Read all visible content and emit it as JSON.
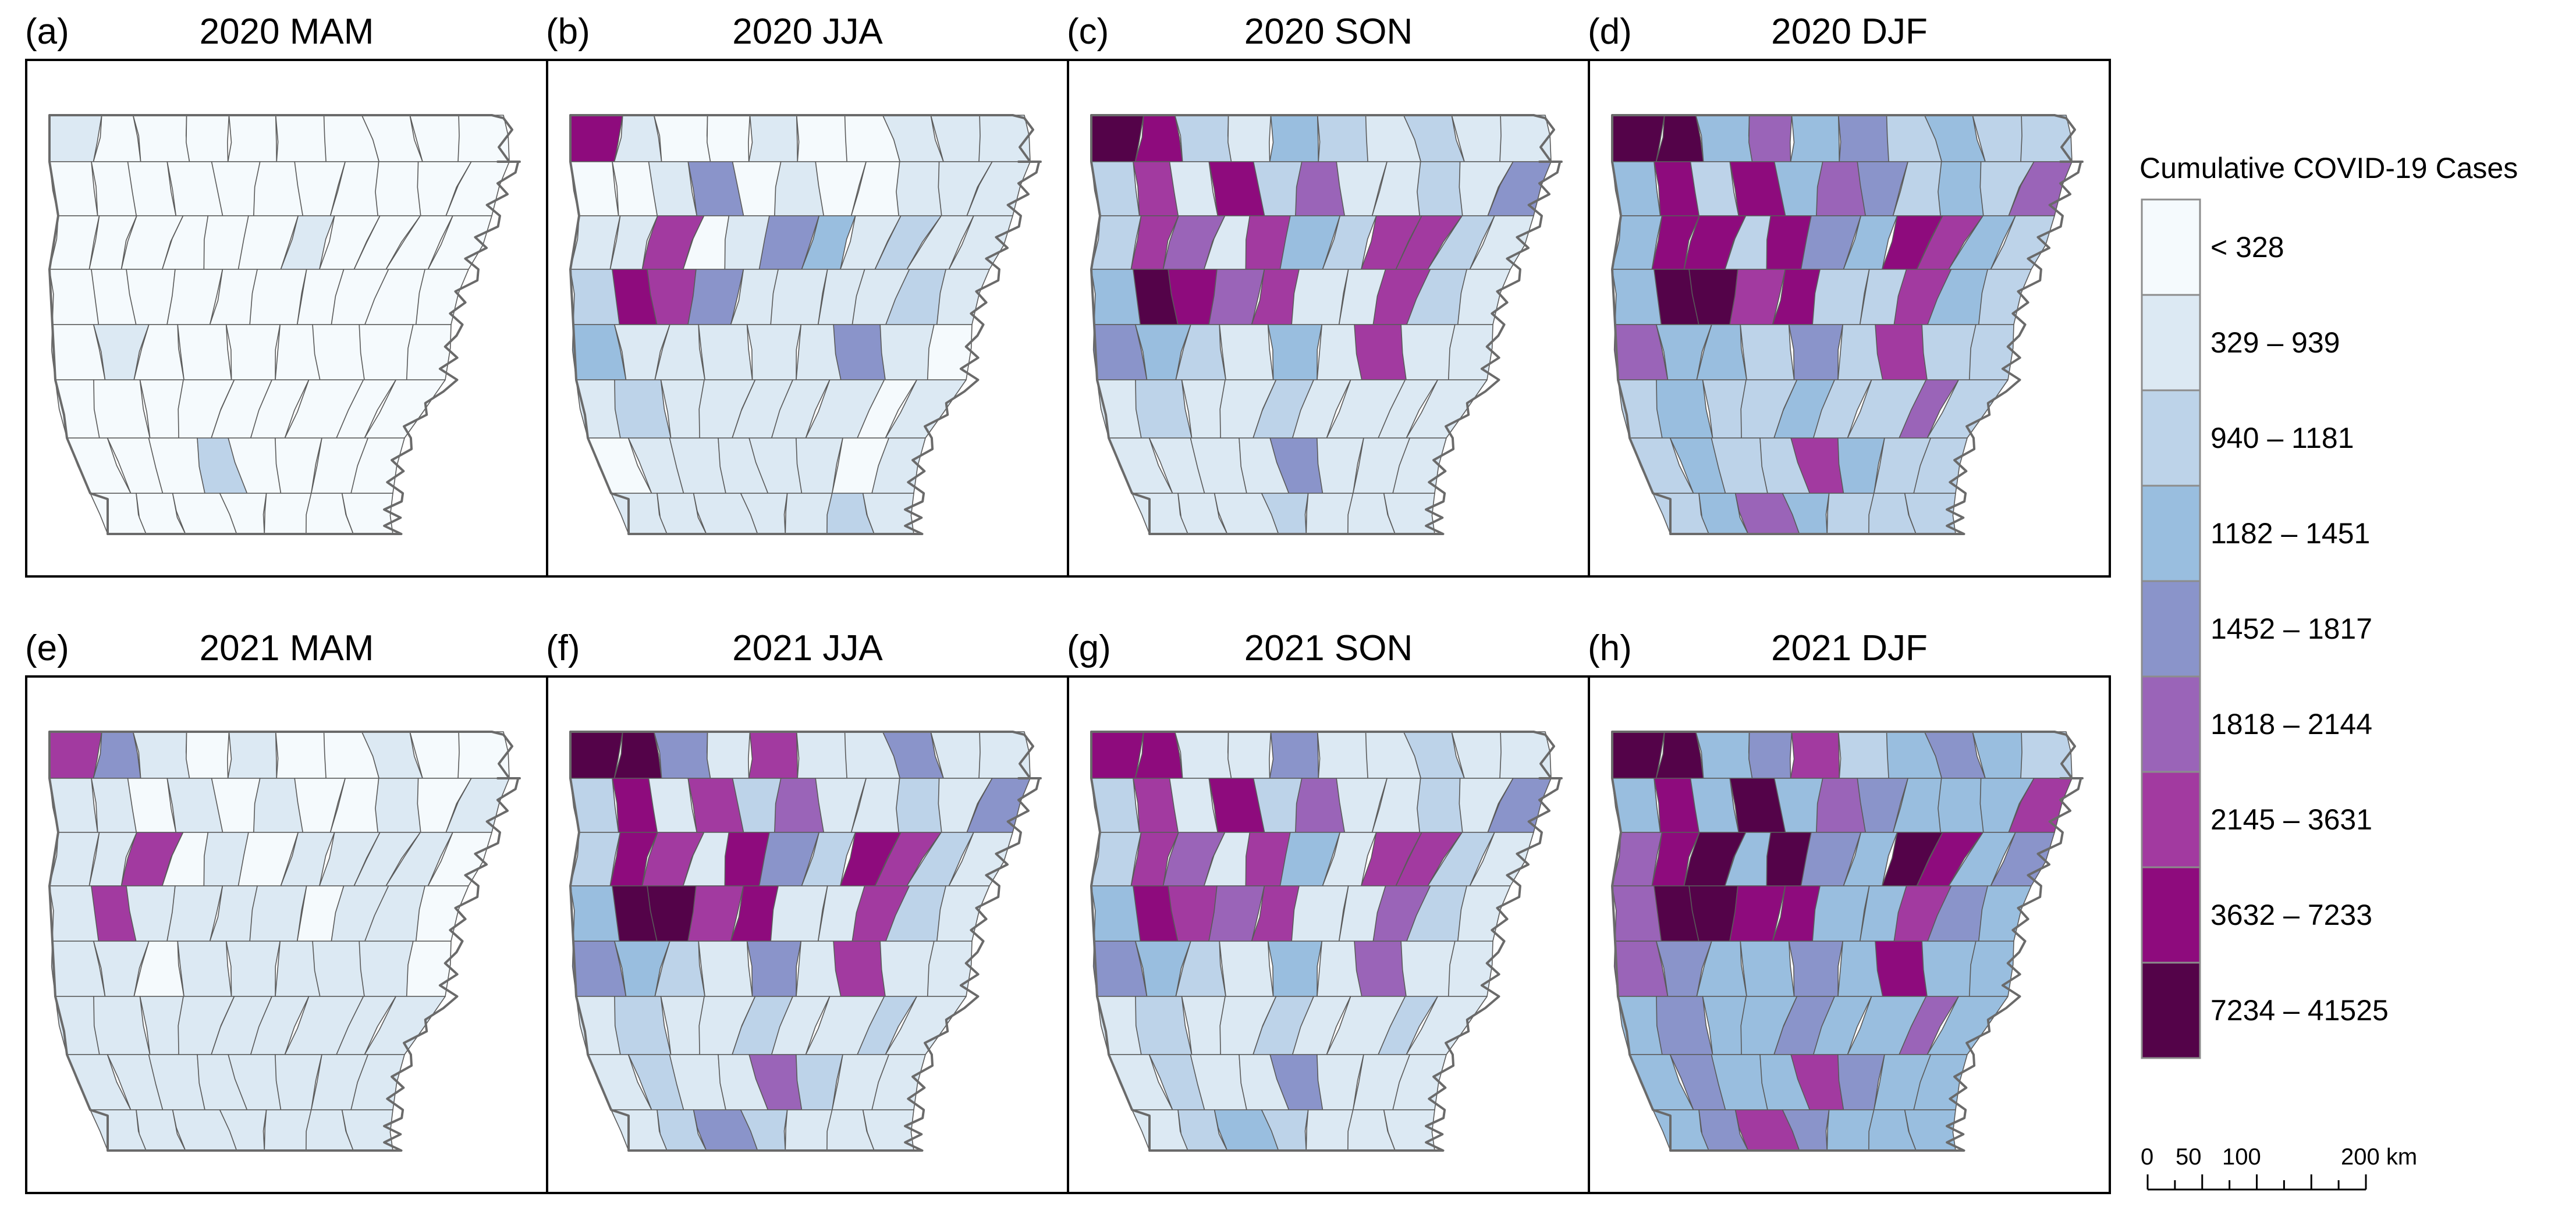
{
  "legend": {
    "title": "Cumulative COVID-19 Cases",
    "classes": [
      {
        "label": "< 328",
        "color": "#f5fafd"
      },
      {
        "label": "329 – 939",
        "color": "#dce9f3"
      },
      {
        "label": "940 – 1181",
        "color": "#bdd3e9"
      },
      {
        "label": "1182 – 1451",
        "color": "#99bedf"
      },
      {
        "label": "1452 – 1817",
        "color": "#8a94ca"
      },
      {
        "label": "1818 – 2144",
        "color": "#9a64b8"
      },
      {
        "label": "2145 – 3631",
        "color": "#a23aa0"
      },
      {
        "label": "3632 – 7233",
        "color": "#8e0b7d"
      },
      {
        "label": "7234 – 41525",
        "color": "#540349"
      }
    ]
  },
  "scale_bar": {
    "ticks": [
      0,
      50,
      100,
      150,
      200
    ],
    "labels": [
      "0",
      "50",
      "100",
      "200 km"
    ]
  },
  "panels": [
    {
      "letter": "(a)",
      "title": "2020 MAM",
      "classes": [
        1,
        0,
        0,
        0,
        0,
        0,
        0,
        0,
        0,
        0,
        0,
        0,
        0,
        0,
        0,
        0,
        0,
        0,
        0,
        0,
        0,
        0,
        0,
        0,
        0,
        0,
        0,
        1,
        0,
        0,
        0,
        0,
        0,
        0,
        0,
        0,
        0,
        0,
        0,
        0,
        0,
        0,
        0,
        1,
        0,
        0,
        0,
        0,
        0,
        0,
        0,
        0,
        0,
        0,
        0,
        0,
        0,
        0,
        0,
        0,
        0,
        0,
        0,
        2,
        0,
        0,
        0,
        0,
        0,
        0,
        0,
        0,
        0,
        0,
        0
      ]
    },
    {
      "letter": "(b)",
      "title": "2020 JJA",
      "classes": [
        7,
        1,
        0,
        0,
        1,
        0,
        0,
        1,
        1,
        1,
        0,
        0,
        1,
        4,
        0,
        1,
        0,
        0,
        1,
        1,
        1,
        1,
        1,
        6,
        0,
        1,
        4,
        3,
        1,
        2,
        1,
        1,
        2,
        7,
        6,
        4,
        1,
        1,
        1,
        1,
        2,
        1,
        3,
        1,
        1,
        1,
        1,
        1,
        4,
        1,
        0,
        1,
        2,
        1,
        1,
        1,
        1,
        1,
        0,
        1,
        0,
        1,
        1,
        1,
        1,
        1,
        0,
        1,
        1,
        1,
        1,
        1,
        1,
        2,
        1
      ]
    },
    {
      "letter": "(c)",
      "title": "2020 SON",
      "classes": [
        8,
        7,
        2,
        1,
        3,
        2,
        1,
        2,
        1,
        1,
        2,
        6,
        1,
        7,
        2,
        5,
        1,
        1,
        2,
        1,
        4,
        2,
        6,
        5,
        1,
        6,
        3,
        2,
        6,
        6,
        2,
        1,
        3,
        8,
        7,
        5,
        6,
        1,
        1,
        6,
        2,
        1,
        4,
        3,
        2,
        1,
        3,
        1,
        6,
        1,
        1,
        1,
        2,
        1,
        1,
        2,
        1,
        1,
        1,
        1,
        1,
        1,
        1,
        1,
        4,
        1,
        1,
        1,
        1,
        1,
        1,
        2,
        1,
        1,
        1
      ]
    },
    {
      "letter": "(d)",
      "title": "2020 DJF",
      "classes": [
        8,
        8,
        3,
        5,
        3,
        4,
        2,
        3,
        2,
        2,
        3,
        7,
        2,
        7,
        3,
        5,
        4,
        2,
        3,
        2,
        5,
        3,
        7,
        7,
        2,
        7,
        4,
        3,
        7,
        6,
        3,
        2,
        3,
        8,
        8,
        6,
        7,
        2,
        2,
        6,
        3,
        2,
        5,
        3,
        3,
        2,
        4,
        2,
        6,
        2,
        2,
        2,
        3,
        2,
        2,
        3,
        2,
        2,
        5,
        2,
        2,
        3,
        2,
        2,
        6,
        3,
        2,
        2,
        2,
        3,
        5,
        3,
        2,
        2,
        2
      ]
    },
    {
      "letter": "(e)",
      "title": "2021 MAM",
      "classes": [
        6,
        4,
        1,
        0,
        1,
        0,
        0,
        1,
        0,
        0,
        1,
        1,
        0,
        1,
        0,
        1,
        0,
        0,
        1,
        0,
        1,
        1,
        1,
        6,
        0,
        1,
        0,
        1,
        1,
        1,
        1,
        0,
        1,
        6,
        1,
        1,
        1,
        1,
        0,
        1,
        1,
        0,
        1,
        1,
        0,
        1,
        1,
        1,
        1,
        1,
        0,
        1,
        1,
        1,
        1,
        1,
        1,
        1,
        1,
        1,
        1,
        1,
        1,
        1,
        1,
        1,
        1,
        1,
        1,
        1,
        1,
        1,
        1,
        1,
        1
      ]
    },
    {
      "letter": "(f)",
      "title": "2021 JJA",
      "classes": [
        8,
        8,
        4,
        1,
        6,
        1,
        1,
        4,
        1,
        1,
        2,
        7,
        1,
        6,
        2,
        5,
        1,
        1,
        2,
        1,
        4,
        2,
        7,
        6,
        1,
        7,
        4,
        2,
        7,
        6,
        2,
        1,
        3,
        8,
        8,
        6,
        7,
        1,
        1,
        6,
        2,
        1,
        4,
        3,
        2,
        1,
        4,
        1,
        6,
        1,
        1,
        1,
        2,
        1,
        1,
        2,
        1,
        1,
        2,
        1,
        1,
        2,
        1,
        1,
        5,
        2,
        1,
        1,
        1,
        2,
        4,
        2,
        1,
        1,
        1
      ]
    },
    {
      "letter": "(g)",
      "title": "2021 SON",
      "classes": [
        7,
        7,
        1,
        1,
        4,
        1,
        1,
        2,
        1,
        1,
        2,
        6,
        1,
        7,
        2,
        5,
        1,
        1,
        2,
        1,
        4,
        2,
        6,
        5,
        1,
        6,
        3,
        1,
        6,
        6,
        2,
        1,
        3,
        7,
        6,
        5,
        6,
        1,
        1,
        5,
        2,
        1,
        4,
        3,
        2,
        1,
        3,
        1,
        5,
        1,
        1,
        1,
        2,
        1,
        1,
        2,
        1,
        1,
        2,
        1,
        1,
        2,
        1,
        1,
        4,
        1,
        1,
        1,
        1,
        2,
        3,
        2,
        1,
        1,
        1
      ]
    },
    {
      "letter": "(h)",
      "title": "2021 DJF",
      "classes": [
        8,
        8,
        3,
        4,
        6,
        2,
        3,
        4,
        3,
        2,
        3,
        7,
        3,
        8,
        3,
        5,
        4,
        3,
        3,
        3,
        6,
        5,
        7,
        8,
        3,
        8,
        4,
        3,
        8,
        7,
        3,
        4,
        5,
        8,
        8,
        7,
        7,
        3,
        3,
        6,
        4,
        3,
        5,
        4,
        3,
        3,
        4,
        3,
        7,
        3,
        3,
        3,
        4,
        3,
        3,
        4,
        3,
        3,
        5,
        3,
        3,
        4,
        3,
        3,
        6,
        4,
        3,
        3,
        3,
        4,
        6,
        4,
        3,
        3,
        3
      ]
    }
  ]
}
